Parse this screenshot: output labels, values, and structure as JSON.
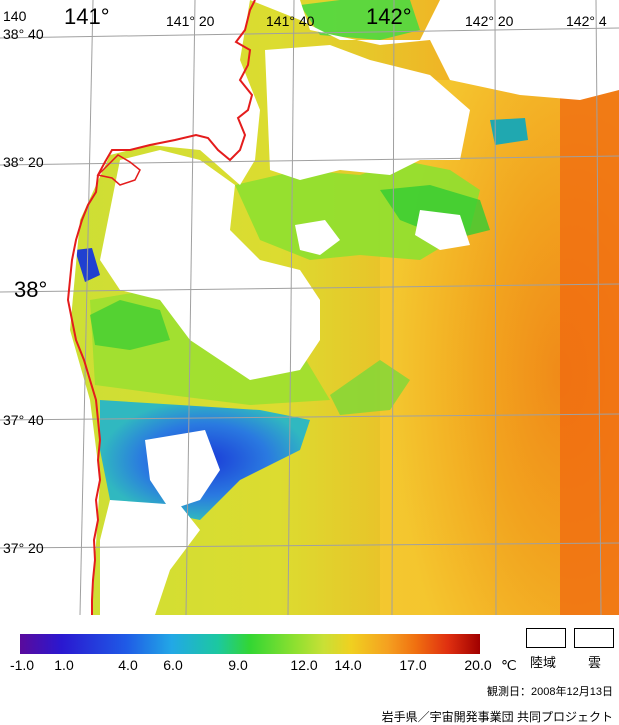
{
  "map": {
    "longitude_labels": [
      "140",
      "141°",
      "141° 20",
      "141° 40",
      "142°",
      "142° 20",
      "142° 4"
    ],
    "latitude_labels": [
      "38° 40",
      "38° 20",
      "38°",
      "37° 40",
      "37° 20"
    ]
  },
  "legend": {
    "scale_ticks": [
      "-1.0",
      "1.0",
      "4.0",
      "6.0",
      "9.0",
      "12.0",
      "14.0",
      "17.0",
      "20.0"
    ],
    "unit": "℃",
    "land_label": "陸域",
    "cloud_label": "雲",
    "colors": [
      "#5a0a9c",
      "#2a18d0",
      "#1f5ae6",
      "#22a8e6",
      "#1cc8a0",
      "#33d633",
      "#90e030",
      "#c8e036",
      "#f0d020",
      "#f5a020",
      "#f07010",
      "#e03010",
      "#a00000"
    ]
  },
  "footer": {
    "observation_date": "観測日：2008年12月13日",
    "credit": "岩手県／宇宙開発事業団 共同プロジェクト"
  },
  "colors": {
    "coastline": "#e41c1c",
    "grid": "#a0a0a0",
    "land": "#ffffff"
  }
}
